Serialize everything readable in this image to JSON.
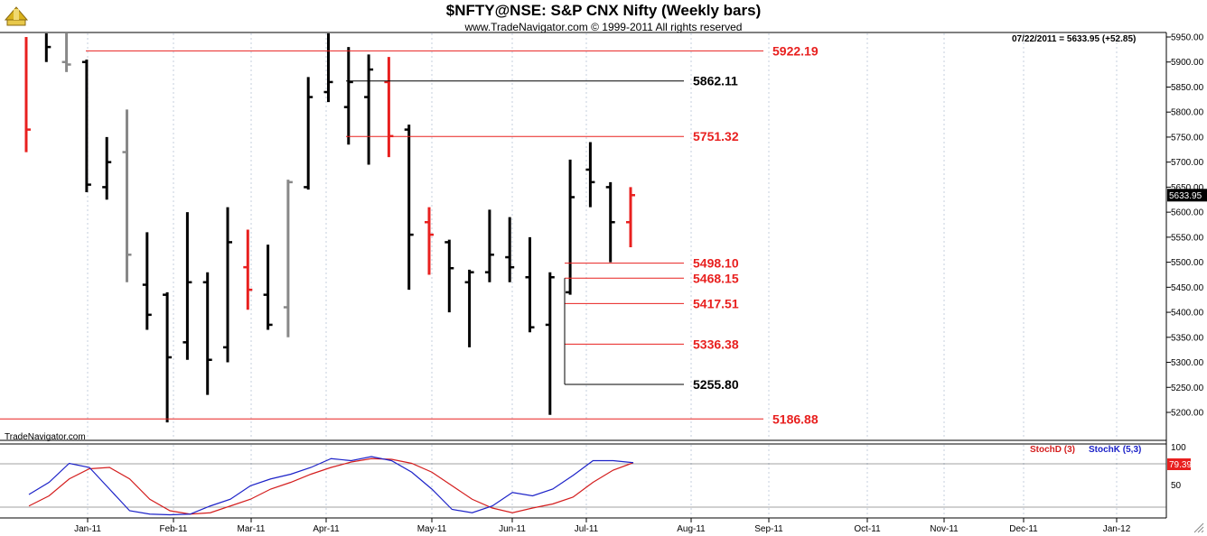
{
  "header": {
    "title": "$NFTY@NSE:  S&P CNX Nifty  (Weekly bars)",
    "copyright": "www.TradeNavigator.com © 1999-2011 All rights reserved",
    "readout": "07/22/2011 = 5633.95 (+52.85)",
    "watermark": "TradeNavigator.com"
  },
  "colors": {
    "up": "#000000",
    "down": "#e8201f",
    "neutral": "#888888",
    "level_red": "#e8201f",
    "level_black": "#000000",
    "stoch_d": "#d41e1e",
    "stoch_k": "#1c22c8",
    "grid": "#9fb0c8"
  },
  "chart_data": [
    {
      "type": "ohlc",
      "title": "$NFTY@NSE:  S&P CNX Nifty  (Weekly bars)",
      "y_ticks": [
        5200,
        5250,
        5300,
        5350,
        5400,
        5450,
        5500,
        5550,
        5600,
        5650,
        5700,
        5750,
        5800,
        5850,
        5900,
        5950
      ],
      "ylim": [
        5180,
        5960
      ],
      "x_ticks": [
        "Jan-11",
        "Feb-11",
        "Mar-11",
        "Apr-11",
        "May-11",
        "Jun-11",
        "Jul-11",
        "Aug-11",
        "Sep-11",
        "Oct-11",
        "Nov-11",
        "Dec-11",
        "Jan-12"
      ],
      "last_price_label": "5633.95",
      "bars": [
        {
          "h": 5950,
          "l": 5720,
          "c": 5765,
          "color": "down"
        },
        {
          "h": 5960,
          "l": 5900,
          "c": 5930,
          "color": "up"
        },
        {
          "h": 5960,
          "l": 5880,
          "o": 5900,
          "c": 5895,
          "color": "neutral"
        },
        {
          "h": 5905,
          "l": 5640,
          "o": 5900,
          "c": 5655,
          "color": "up"
        },
        {
          "h": 5750,
          "l": 5625,
          "o": 5650,
          "c": 5700,
          "color": "up"
        },
        {
          "h": 5805,
          "l": 5460,
          "o": 5720,
          "c": 5515,
          "color": "neutral"
        },
        {
          "h": 5560,
          "l": 5365,
          "o": 5455,
          "c": 5395,
          "color": "up"
        },
        {
          "h": 5440,
          "l": 5180,
          "o": 5435,
          "c": 5310,
          "color": "up"
        },
        {
          "h": 5600,
          "l": 5305,
          "o": 5340,
          "c": 5460,
          "color": "up"
        },
        {
          "h": 5480,
          "l": 5235,
          "o": 5460,
          "c": 5305,
          "color": "up"
        },
        {
          "h": 5610,
          "l": 5300,
          "o": 5330,
          "c": 5540,
          "color": "up"
        },
        {
          "h": 5565,
          "l": 5405,
          "o": 5490,
          "c": 5445,
          "color": "down"
        },
        {
          "h": 5535,
          "l": 5365,
          "o": 5435,
          "c": 5375,
          "color": "up"
        },
        {
          "h": 5665,
          "l": 5350,
          "o": 5410,
          "c": 5660,
          "color": "neutral"
        },
        {
          "h": 5870,
          "l": 5645,
          "o": 5650,
          "c": 5830,
          "color": "up"
        },
        {
          "h": 5960,
          "l": 5820,
          "o": 5840,
          "c": 5860,
          "color": "up"
        },
        {
          "h": 5930,
          "l": 5735,
          "o": 5810,
          "c": 5860,
          "color": "up"
        },
        {
          "h": 5915,
          "l": 5695,
          "o": 5830,
          "c": 5885,
          "color": "up"
        },
        {
          "h": 5910,
          "l": 5710,
          "o": 5860,
          "c": 5752,
          "color": "down"
        },
        {
          "h": 5775,
          "l": 5445,
          "o": 5765,
          "c": 5555,
          "color": "up"
        },
        {
          "h": 5610,
          "l": 5475,
          "o": 5580,
          "c": 5555,
          "color": "down"
        },
        {
          "h": 5545,
          "l": 5400,
          "o": 5540,
          "c": 5488,
          "color": "up"
        },
        {
          "h": 5485,
          "l": 5330,
          "o": 5460,
          "c": 5480,
          "color": "up"
        },
        {
          "h": 5605,
          "l": 5460,
          "o": 5480,
          "c": 5515,
          "color": "up"
        },
        {
          "h": 5590,
          "l": 5460,
          "o": 5510,
          "c": 5490,
          "color": "up"
        },
        {
          "h": 5550,
          "l": 5360,
          "o": 5470,
          "c": 5370,
          "color": "up"
        },
        {
          "h": 5480,
          "l": 5195,
          "o": 5375,
          "c": 5470,
          "color": "up"
        },
        {
          "h": 5705,
          "l": 5435,
          "o": 5440,
          "c": 5630,
          "color": "up"
        },
        {
          "h": 5740,
          "l": 5610,
          "o": 5685,
          "c": 5660,
          "color": "up"
        },
        {
          "h": 5660,
          "l": 5500,
          "o": 5650,
          "c": 5580,
          "color": "up"
        },
        {
          "h": 5650,
          "l": 5530,
          "o": 5580,
          "c": 5634,
          "color": "down"
        }
      ],
      "levels": [
        {
          "label": "5922.19",
          "value": 5922.19,
          "color": "level_red"
        },
        {
          "label": "5862.11",
          "value": 5862.11,
          "color": "level_black"
        },
        {
          "label": "5751.32",
          "value": 5751.32,
          "color": "level_red"
        },
        {
          "label": "5498.10",
          "value": 5498.1,
          "color": "level_red"
        },
        {
          "label": "5468.15",
          "value": 5468.15,
          "color": "level_red"
        },
        {
          "label": "5417.51",
          "value": 5417.51,
          "color": "level_red"
        },
        {
          "label": "5336.38",
          "value": 5336.38,
          "color": "level_red"
        },
        {
          "label": "5255.80",
          "value": 5255.8,
          "color": "level_black"
        },
        {
          "label": "5186.88",
          "value": 5186.88,
          "color": "level_red"
        }
      ]
    },
    {
      "type": "line",
      "legend": [
        "StochD (3)",
        "StochK (5,3)"
      ],
      "y_ticks": [
        50,
        100
      ],
      "ylim": [
        0,
        100
      ],
      "current_value_label": "79.39",
      "series": [
        {
          "name": "StochD (3)",
          "values": [
            15,
            30,
            55,
            70,
            72,
            55,
            25,
            8,
            3,
            5,
            15,
            25,
            40,
            50,
            62,
            72,
            80,
            85,
            84,
            78,
            65,
            45,
            25,
            12,
            5,
            12,
            18,
            28,
            50,
            68,
            79
          ]
        },
        {
          "name": "StochK (5,3)",
          "values": [
            32,
            50,
            78,
            72,
            40,
            8,
            3,
            2,
            3,
            15,
            25,
            45,
            55,
            62,
            72,
            85,
            82,
            88,
            82,
            65,
            40,
            10,
            5,
            15,
            35,
            30,
            40,
            60,
            82,
            82,
            79
          ]
        }
      ]
    }
  ]
}
